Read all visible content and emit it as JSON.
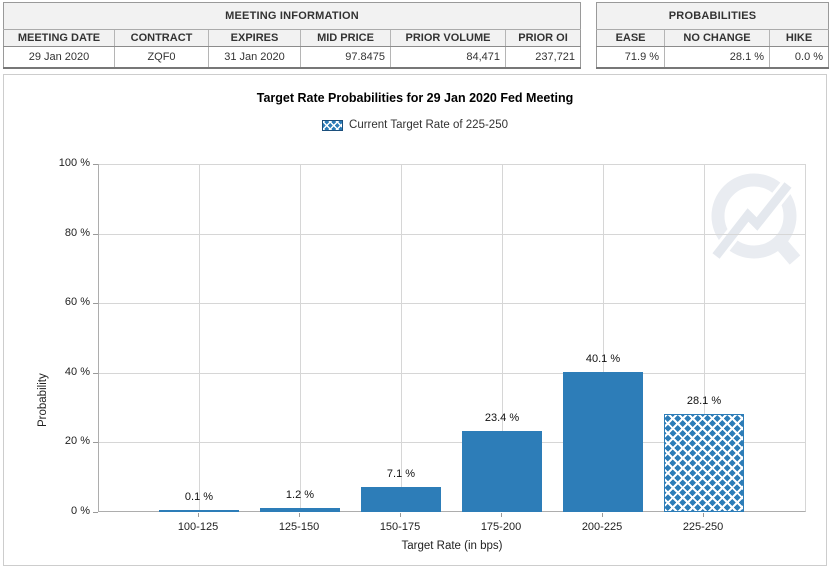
{
  "meeting_information": {
    "title": "MEETING INFORMATION",
    "columns": [
      "MEETING DATE",
      "CONTRACT",
      "EXPIRES",
      "MID PRICE",
      "PRIOR VOLUME",
      "PRIOR OI"
    ],
    "row": {
      "meeting_date": "29 Jan 2020",
      "contract": "ZQF0",
      "expires": "31 Jan 2020",
      "mid_price": "97.8475",
      "prior_volume": "84,471",
      "prior_oi": "237,721"
    }
  },
  "probabilities": {
    "title": "PROBABILITIES",
    "columns": [
      "EASE",
      "NO CHANGE",
      "HIKE"
    ],
    "row": {
      "ease": "71.9 %",
      "no_change": "28.1 %",
      "hike": "0.0 %"
    }
  },
  "chart_data": {
    "type": "bar",
    "title": "Target Rate Probabilities for 29 Jan 2020 Fed Meeting",
    "legend_label": "Current Target Rate of 225-250",
    "legend_position": "top",
    "categories": [
      "100-125",
      "125-150",
      "150-175",
      "175-200",
      "200-225",
      "225-250"
    ],
    "values": [
      0.1,
      1.2,
      7.1,
      23.4,
      40.1,
      28.1
    ],
    "bar_labels": [
      "0.1 %",
      "1.2 %",
      "7.1 %",
      "23.4 %",
      "40.1 %",
      "28.1 %"
    ],
    "highlighted_category": "225-250",
    "highlight_style": "crosshatch",
    "xlabel": "Target Rate (in bps)",
    "ylabel": "Probability",
    "ylim": [
      0,
      100
    ],
    "yticks": [
      "0 %",
      "20 %",
      "40 %",
      "60 %",
      "80 %",
      "100 %"
    ],
    "grid": true,
    "bar_color": "#2d7db8",
    "hatch_line_color": "#ffffff"
  },
  "watermark_icon": "quikstrike-logo"
}
